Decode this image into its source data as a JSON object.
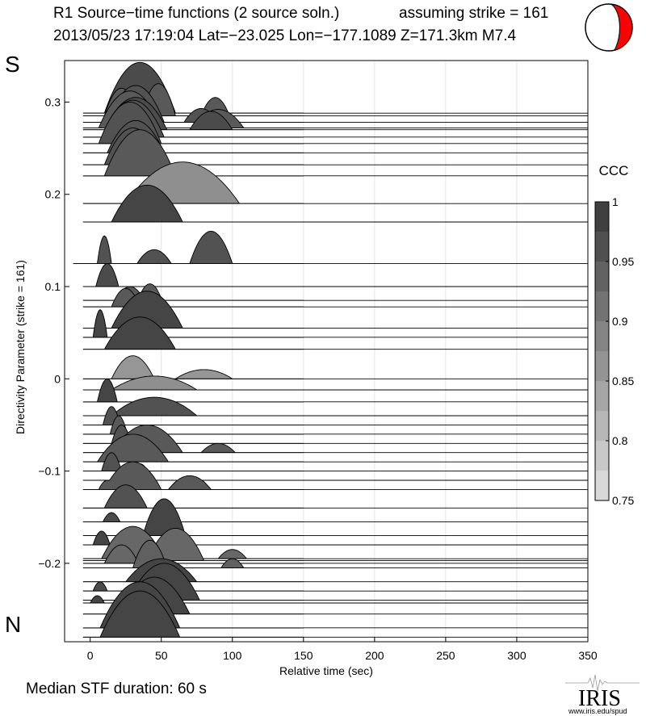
{
  "header": {
    "title": "R1 Source−time functions (2 source soln.)",
    "strike_note": "assuming strike = 161",
    "event_info": "2013/05/23 17:19:04  Lat=−23.025 Lon=−177.1089  Z=171.3km  M7.4"
  },
  "labels": {
    "south": "S",
    "north": "N"
  },
  "footer": {
    "median": "Median STF duration: 60 s"
  },
  "logo": {
    "text": "IRIS",
    "url_text": "www.iris.edu/spud"
  },
  "colors": {
    "beachball_fill": "#ff0000"
  },
  "chart_data": {
    "type": "area",
    "title": "R1 Source−time functions",
    "xlabel": "Relative time (sec)",
    "ylabel": "Directivity Parameter (strike = 161)",
    "xlim": [
      -18,
      350
    ],
    "ylim": [
      -0.285,
      0.345
    ],
    "x_ticks": [
      0,
      50,
      100,
      150,
      200,
      250,
      300,
      350
    ],
    "x_tick_labels": [
      "0",
      "50",
      "100",
      "150",
      "200",
      "250",
      "300",
      "350"
    ],
    "y_ticks": [
      0.3,
      0.2,
      0.1,
      0,
      -0.1,
      -0.2
    ],
    "y_tick_labels": [
      "0.3",
      "0.2",
      "0.1",
      "0",
      "−0.1",
      "−0.2"
    ],
    "grid_x": true,
    "colorbar": {
      "label": "CCC",
      "min": 0.75,
      "max": 1,
      "ticks": [
        1,
        0.95,
        0.9,
        0.85,
        0.8,
        0.75
      ],
      "tick_labels": [
        "1",
        "0.95",
        "0.9",
        "0.85",
        "0.8",
        "0.75"
      ]
    },
    "series": [
      {
        "d": 0.288,
        "ccc": 0.97,
        "start": -5,
        "pulses": [
          [
            35,
            25,
            0.055
          ]
        ]
      },
      {
        "d": 0.285,
        "ccc": 0.95,
        "start": -5,
        "pulses": [
          [
            22,
            12,
            0.03
          ],
          [
            48,
            12,
            0.035
          ],
          [
            88,
            10,
            0.02
          ]
        ]
      },
      {
        "d": 0.278,
        "ccc": 0.96,
        "start": -5,
        "pulses": [
          [
            32,
            20,
            0.04
          ],
          [
            78,
            12,
            0.015
          ]
        ]
      },
      {
        "d": 0.272,
        "ccc": 0.95,
        "start": -5,
        "pulses": [
          [
            28,
            22,
            0.04
          ],
          [
            90,
            18,
            0.02
          ]
        ]
      },
      {
        "d": 0.27,
        "ccc": 0.97,
        "start": -5,
        "pulses": [
          [
            32,
            22,
            0.035
          ],
          [
            85,
            15,
            0.02
          ]
        ]
      },
      {
        "d": 0.262,
        "ccc": 0.96,
        "start": -5,
        "pulses": [
          [
            30,
            22,
            0.04
          ]
        ]
      },
      {
        "d": 0.255,
        "ccc": 0.96,
        "start": -5,
        "pulses": [
          [
            28,
            22,
            0.045
          ]
        ]
      },
      {
        "d": 0.245,
        "ccc": 0.96,
        "start": -5,
        "pulses": [
          [
            32,
            20,
            0.035
          ]
        ]
      },
      {
        "d": 0.232,
        "ccc": 0.96,
        "start": -5,
        "pulses": [
          [
            30,
            20,
            0.04
          ]
        ]
      },
      {
        "d": 0.22,
        "ccc": 0.95,
        "start": -5,
        "pulses": [
          [
            35,
            25,
            0.05
          ]
        ]
      },
      {
        "d": 0.19,
        "ccc": 0.87,
        "start": -5,
        "pulses": [
          [
            65,
            40,
            0.045
          ]
        ]
      },
      {
        "d": 0.17,
        "ccc": 0.98,
        "start": -5,
        "pulses": [
          [
            40,
            25,
            0.04
          ]
        ]
      },
      {
        "d": 0.125,
        "ccc": 0.96,
        "start": -12,
        "pulses": [
          [
            10,
            5,
            0.03
          ],
          [
            45,
            12,
            0.015
          ],
          [
            85,
            15,
            0.035
          ]
        ]
      },
      {
        "d": 0.1,
        "ccc": 0.97,
        "start": -5,
        "pulses": [
          [
            12,
            8,
            0.025
          ]
        ]
      },
      {
        "d": 0.085,
        "ccc": 0.95,
        "start": -5,
        "pulses": [
          [
            28,
            10,
            0.015
          ]
        ]
      },
      {
        "d": 0.078,
        "ccc": 0.95,
        "start": -5,
        "pulses": [
          [
            25,
            10,
            0.02
          ],
          [
            42,
            10,
            0.025
          ]
        ]
      },
      {
        "d": 0.055,
        "ccc": 0.98,
        "start": -5,
        "pulses": [
          [
            40,
            25,
            0.04
          ]
        ]
      },
      {
        "d": 0.045,
        "ccc": 0.98,
        "start": -5,
        "pulses": [
          [
            7,
            5,
            0.03
          ]
        ]
      },
      {
        "d": 0.032,
        "ccc": 0.98,
        "start": -5,
        "pulses": [
          [
            35,
            25,
            0.035
          ]
        ]
      },
      {
        "d": 0.0,
        "ccc": 0.86,
        "start": -5,
        "pulses": [
          [
            30,
            15,
            0.025
          ],
          [
            80,
            20,
            0.01
          ]
        ]
      },
      {
        "d": -0.012,
        "ccc": 0.87,
        "start": -5,
        "pulses": [
          [
            45,
            30,
            0.015
          ]
        ]
      },
      {
        "d": -0.025,
        "ccc": 0.98,
        "start": -5,
        "pulses": [
          [
            12,
            7,
            0.025
          ]
        ]
      },
      {
        "d": -0.04,
        "ccc": 0.96,
        "start": -5,
        "pulses": [
          [
            45,
            30,
            0.02
          ]
        ]
      },
      {
        "d": -0.05,
        "ccc": 0.96,
        "start": -5,
        "pulses": [
          [
            15,
            6,
            0.02
          ]
        ]
      },
      {
        "d": -0.06,
        "ccc": 0.95,
        "start": -5,
        "pulses": [
          [
            20,
            6,
            0.02
          ]
        ]
      },
      {
        "d": -0.07,
        "ccc": 0.96,
        "start": -5,
        "pulses": [
          [
            22,
            7,
            0.02
          ]
        ]
      },
      {
        "d": -0.08,
        "ccc": 0.95,
        "start": -5,
        "pulses": [
          [
            40,
            25,
            0.03
          ],
          [
            90,
            12,
            0.01
          ]
        ]
      },
      {
        "d": -0.09,
        "ccc": 0.95,
        "start": -5,
        "pulses": [
          [
            30,
            25,
            0.03
          ]
        ]
      },
      {
        "d": -0.1,
        "ccc": 0.96,
        "start": -5,
        "pulses": [
          [
            15,
            7,
            0.02
          ]
        ]
      },
      {
        "d": -0.11,
        "ccc": 0.97,
        "start": -5,
        "pulses": [
          [
            35,
            8,
            0.018
          ]
        ]
      },
      {
        "d": -0.12,
        "ccc": 0.95,
        "start": -5,
        "pulses": [
          [
            12,
            6,
            0.01
          ],
          [
            30,
            20,
            0.03
          ],
          [
            70,
            15,
            0.015
          ]
        ]
      },
      {
        "d": -0.14,
        "ccc": 0.96,
        "start": -5,
        "pulses": [
          [
            25,
            15,
            0.025
          ]
        ]
      },
      {
        "d": -0.155,
        "ccc": 0.97,
        "start": -5,
        "pulses": [
          [
            15,
            6,
            0.01
          ]
        ]
      },
      {
        "d": -0.17,
        "ccc": 0.98,
        "start": -5,
        "pulses": [
          [
            52,
            15,
            0.04
          ]
        ]
      },
      {
        "d": -0.18,
        "ccc": 0.98,
        "start": -5,
        "pulses": [
          [
            8,
            6,
            0.015
          ]
        ]
      },
      {
        "d": -0.195,
        "ccc": 0.93,
        "start": -5,
        "pulses": [
          [
            30,
            22,
            0.035
          ],
          [
            100,
            10,
            0.01
          ]
        ]
      },
      {
        "d": -0.197,
        "ccc": 0.93,
        "start": -5,
        "pulses": [
          [
            60,
            20,
            0.035
          ]
        ]
      },
      {
        "d": -0.2,
        "ccc": 0.93,
        "start": -5,
        "pulses": [
          [
            22,
            12,
            0.02
          ]
        ]
      },
      {
        "d": -0.205,
        "ccc": 0.94,
        "start": -5,
        "pulses": [
          [
            42,
            12,
            0.03
          ],
          [
            100,
            8,
            0.01
          ]
        ]
      },
      {
        "d": -0.22,
        "ccc": 0.98,
        "start": -5,
        "pulses": [
          [
            50,
            25,
            0.025
          ]
        ]
      },
      {
        "d": -0.23,
        "ccc": 0.97,
        "start": -5,
        "pulses": [
          [
            7,
            5,
            0.01
          ]
        ]
      },
      {
        "d": -0.24,
        "ccc": 0.98,
        "start": -5,
        "pulses": [
          [
            52,
            25,
            0.04
          ]
        ]
      },
      {
        "d": -0.243,
        "ccc": 0.98,
        "start": -5,
        "pulses": [
          [
            5,
            5,
            0.008
          ]
        ]
      },
      {
        "d": -0.255,
        "ccc": 0.98,
        "start": -5,
        "pulses": [
          [
            45,
            25,
            0.04
          ]
        ]
      },
      {
        "d": -0.27,
        "ccc": 0.98,
        "start": -5,
        "pulses": [
          [
            35,
            28,
            0.05
          ]
        ]
      },
      {
        "d": -0.28,
        "ccc": 0.98,
        "start": -5,
        "pulses": [
          [
            35,
            28,
            0.05
          ]
        ]
      }
    ]
  }
}
